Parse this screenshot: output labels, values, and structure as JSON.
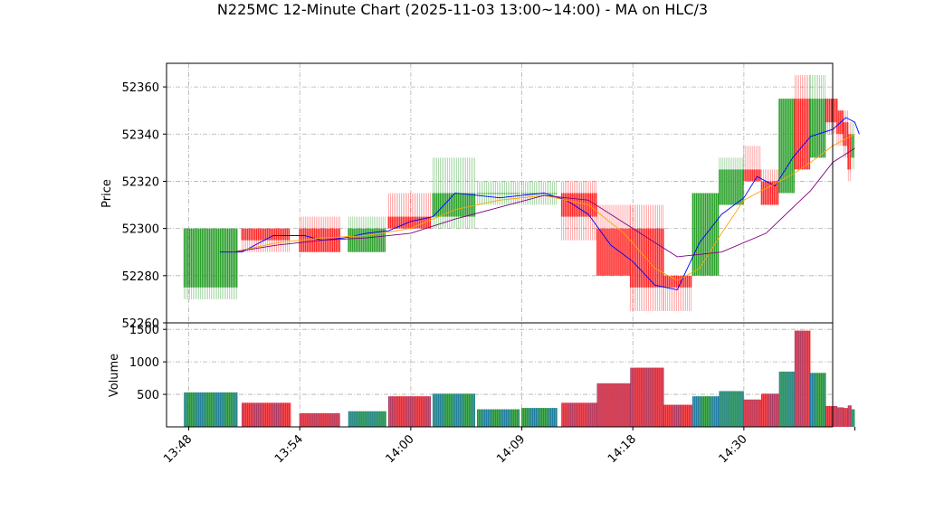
{
  "chart_data": {
    "type": "candlestick",
    "title": "N225MC 12-Minute Chart (2025-11-03 13:00~14:00) - MA on HLC/3",
    "price_panel": {
      "ylabel": "Price",
      "ylim": [
        52260,
        52370
      ],
      "yticks": [
        52260,
        52280,
        52300,
        52320,
        52340,
        52360
      ]
    },
    "volume_panel": {
      "ylabel": "Volume",
      "ylim": [
        0,
        1600
      ],
      "yticks": [
        500,
        1000,
        1500
      ]
    },
    "xlim": [
      -0.5,
      14.5
    ],
    "x_ticks": [
      {
        "label": "13:48",
        "pos": 0
      },
      {
        "label": "13:54",
        "pos": 2.5
      },
      {
        "label": "14:00",
        "pos": 5
      },
      {
        "label": "14:09",
        "pos": 7.5
      },
      {
        "label": "14:18",
        "pos": 10
      },
      {
        "label": "14:30",
        "pos": 12.5
      }
    ],
    "colors": {
      "up": "#2ca02c",
      "down": "#ff2a2a",
      "ma_short": "#0000ff",
      "ma_mid": "#ffa500",
      "ma_long": "#800080",
      "vol_up": "#1f77b4",
      "vol_down": "#9b3a6a"
    },
    "candles": [
      {
        "x0": -0.1,
        "x1": 1.1,
        "open": 52275,
        "close": 52300,
        "high": 52300,
        "low": 52270,
        "volume": 530
      },
      {
        "x0": 1.2,
        "x1": 2.3,
        "open": 52300,
        "close": 52295,
        "high": 52300,
        "low": 52290,
        "volume": 370
      },
      {
        "x0": 2.5,
        "x1": 3.4,
        "open": 52300,
        "close": 52290,
        "high": 52305,
        "low": 52290,
        "volume": 210
      },
      {
        "x0": 3.6,
        "x1": 4.45,
        "open": 52290,
        "close": 52300,
        "high": 52305,
        "low": 52290,
        "volume": 240
      },
      {
        "x0": 4.5,
        "x1": 5.45,
        "open": 52305,
        "close": 52300,
        "high": 52315,
        "low": 52300,
        "volume": 470
      },
      {
        "x0": 5.5,
        "x1": 6.45,
        "open": 52305,
        "close": 52315,
        "high": 52330,
        "low": 52300,
        "volume": 510
      },
      {
        "x0": 6.5,
        "x1": 7.45,
        "open": 52315,
        "close": 52315,
        "high": 52320,
        "low": 52310,
        "volume": 270
      },
      {
        "x0": 7.5,
        "x1": 8.3,
        "open": 52315,
        "close": 52315,
        "high": 52320,
        "low": 52310,
        "volume": 290
      },
      {
        "x0": 8.4,
        "x1": 9.2,
        "open": 52315,
        "close": 52305,
        "high": 52320,
        "low": 52295,
        "volume": 370
      },
      {
        "x0": 9.2,
        "x1": 9.95,
        "open": 52300,
        "close": 52280,
        "high": 52310,
        "low": 52280,
        "volume": 670
      },
      {
        "x0": 9.95,
        "x1": 10.7,
        "open": 52300,
        "close": 52275,
        "high": 52310,
        "low": 52265,
        "volume": 910
      },
      {
        "x0": 10.7,
        "x1": 11.35,
        "open": 52280,
        "close": 52275,
        "high": 52280,
        "low": 52265,
        "volume": 340
      },
      {
        "x0": 11.35,
        "x1": 11.95,
        "open": 52280,
        "close": 52315,
        "high": 52315,
        "low": 52280,
        "volume": 470
      },
      {
        "x0": 11.95,
        "x1": 12.5,
        "open": 52310,
        "close": 52325,
        "high": 52330,
        "low": 52310,
        "volume": 550
      },
      {
        "x0": 12.5,
        "x1": 12.9,
        "open": 52325,
        "close": 52320,
        "high": 52335,
        "low": 52320,
        "volume": 420
      },
      {
        "x0": 12.9,
        "x1": 13.3,
        "open": 52320,
        "close": 52310,
        "high": 52325,
        "low": 52310,
        "volume": 510
      },
      {
        "x0": 13.3,
        "x1": 13.65,
        "open": 52315,
        "close": 52355,
        "high": 52355,
        "low": 52315,
        "volume": 850
      },
      {
        "x0": 13.65,
        "x1": 14.0,
        "open": 52355,
        "close": 52325,
        "high": 52365,
        "low": 52325,
        "volume": 1480
      },
      {
        "x0": 14.0,
        "x1": 14.35,
        "open": 52330,
        "close": 52355,
        "high": 52365,
        "low": 52330,
        "volume": 830
      },
      {
        "x0": 14.35,
        "x1": 14.6,
        "open": 52355,
        "close": 52345,
        "high": 52355,
        "low": 52340,
        "volume": 320
      },
      {
        "x0": 14.6,
        "x1": 14.75,
        "open": 52350,
        "close": 52340,
        "high": 52350,
        "low": 52335,
        "volume": 300
      },
      {
        "x0": 14.75,
        "x1": 14.85,
        "open": 52345,
        "close": 52335,
        "high": 52350,
        "low": 52330,
        "volume": 290
      },
      {
        "x0": 14.85,
        "x1": 14.93,
        "open": 52340,
        "close": 52325,
        "high": 52345,
        "low": 52320,
        "volume": 330
      },
      {
        "x0": 14.93,
        "x1": 15.0,
        "open": 52330,
        "close": 52340,
        "high": 52345,
        "low": 52325,
        "volume": 270
      }
    ],
    "ma_series": [
      {
        "key": "ma_short",
        "points": [
          [
            0.7,
            52290
          ],
          [
            1.2,
            52290
          ],
          [
            1.9,
            52297
          ],
          [
            2.6,
            52297
          ],
          [
            3.0,
            52295
          ],
          [
            3.5,
            52296
          ],
          [
            4.0,
            52298
          ],
          [
            4.5,
            52299
          ],
          [
            5.0,
            52303
          ],
          [
            5.5,
            52305
          ],
          [
            6.0,
            52315
          ],
          [
            6.5,
            52314
          ],
          [
            7.0,
            52313
          ],
          [
            7.5,
            52314
          ],
          [
            8.0,
            52315
          ],
          [
            8.5,
            52312
          ],
          [
            9.0,
            52306
          ],
          [
            9.5,
            52293
          ],
          [
            10.0,
            52286
          ],
          [
            10.5,
            52276
          ],
          [
            11.0,
            52274
          ],
          [
            11.5,
            52294
          ],
          [
            12.0,
            52306
          ],
          [
            12.5,
            52313
          ],
          [
            12.8,
            52322
          ],
          [
            13.2,
            52318
          ],
          [
            13.6,
            52330
          ],
          [
            14.0,
            52339
          ],
          [
            14.5,
            52342
          ],
          [
            14.8,
            52347
          ],
          [
            15.0,
            52345
          ],
          [
            15.1,
            52340
          ]
        ]
      },
      {
        "key": "ma_mid",
        "points": [
          [
            1.0,
            52290
          ],
          [
            2.0,
            52294
          ],
          [
            3.0,
            52296
          ],
          [
            4.0,
            52297
          ],
          [
            5.0,
            52300
          ],
          [
            6.0,
            52308
          ],
          [
            7.0,
            52312
          ],
          [
            8.0,
            52314
          ],
          [
            9.0,
            52310
          ],
          [
            9.8,
            52298
          ],
          [
            10.5,
            52283
          ],
          [
            11.0,
            52278
          ],
          [
            11.5,
            52283
          ],
          [
            12.0,
            52298
          ],
          [
            12.5,
            52312
          ],
          [
            13.0,
            52317
          ],
          [
            13.6,
            52323
          ],
          [
            14.0,
            52328
          ],
          [
            14.5,
            52335
          ],
          [
            15.0,
            52340
          ]
        ]
      },
      {
        "key": "ma_long",
        "points": [
          [
            1.0,
            52290
          ],
          [
            2.0,
            52293
          ],
          [
            3.0,
            52295
          ],
          [
            4.0,
            52296
          ],
          [
            5.0,
            52298
          ],
          [
            6.0,
            52304
          ],
          [
            7.0,
            52309
          ],
          [
            8.0,
            52314
          ],
          [
            9.0,
            52312
          ],
          [
            10.0,
            52300
          ],
          [
            11.0,
            52288
          ],
          [
            12.0,
            52290
          ],
          [
            13.0,
            52298
          ],
          [
            14.0,
            52316
          ],
          [
            14.5,
            52328
          ],
          [
            15.0,
            52334
          ]
        ]
      }
    ]
  }
}
